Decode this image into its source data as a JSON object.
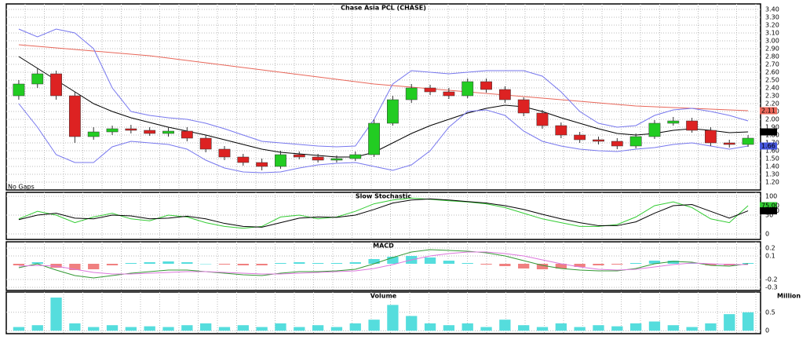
{
  "chart_data": [
    {
      "type": "candlestick",
      "title": "Chase Asia PCL (CHASE)",
      "annotation": "No Gaps",
      "ylim": [
        1.1,
        3.47
      ],
      "yticks": [
        {
          "value": 1.2,
          "label": "1.20"
        },
        {
          "value": 1.3,
          "label": "1.30"
        },
        {
          "value": 1.4,
          "label": "1.40"
        },
        {
          "value": 1.5,
          "label": "1.50"
        },
        {
          "value": 1.6,
          "label": "1.60"
        },
        {
          "value": 1.7,
          "label": "1.70"
        },
        {
          "value": 1.8,
          "label": "1.80"
        },
        {
          "value": 1.9,
          "label": "1.90"
        },
        {
          "value": 2.0,
          "label": "2.00"
        },
        {
          "value": 2.1,
          "label": "2.10"
        },
        {
          "value": 2.2,
          "label": "2.20"
        },
        {
          "value": 2.3,
          "label": "2.30"
        },
        {
          "value": 2.4,
          "label": "2.40"
        },
        {
          "value": 2.5,
          "label": "2.50"
        },
        {
          "value": 2.6,
          "label": "2.60"
        },
        {
          "value": 2.7,
          "label": "2.70"
        },
        {
          "value": 2.8,
          "label": "2.80"
        },
        {
          "value": 2.9,
          "label": "2.90"
        },
        {
          "value": 3.0,
          "label": "3.00"
        },
        {
          "value": 3.1,
          "label": "3.10"
        },
        {
          "value": 3.2,
          "label": "3.20"
        },
        {
          "value": 3.3,
          "label": "3.30"
        },
        {
          "value": 3.4,
          "label": "3.40"
        }
      ],
      "up_color": "#22cc22",
      "down_color": "#dd2222",
      "grid": true,
      "open": [
        2.3,
        2.45,
        2.58,
        2.3,
        1.78,
        1.84,
        1.88,
        1.86,
        1.82,
        1.85,
        1.76,
        1.62,
        1.52,
        1.45,
        1.4,
        1.55,
        1.52,
        1.48,
        1.5,
        1.55,
        1.95,
        2.25,
        2.4,
        2.35,
        2.3,
        2.48,
        2.38,
        2.25,
        2.08,
        1.92,
        1.8,
        1.74,
        1.72,
        1.66,
        1.78,
        1.95,
        1.98,
        1.86,
        1.7,
        1.68
      ],
      "high": [
        2.5,
        2.65,
        2.62,
        2.35,
        1.9,
        1.92,
        1.93,
        1.9,
        1.9,
        1.9,
        1.8,
        1.66,
        1.56,
        1.5,
        1.6,
        1.59,
        1.56,
        1.54,
        1.59,
        2.0,
        2.3,
        2.45,
        2.44,
        2.4,
        2.52,
        2.52,
        2.42,
        2.28,
        2.12,
        1.96,
        1.84,
        1.78,
        1.76,
        1.82,
        1.99,
        2.03,
        2.02,
        1.9,
        1.74,
        1.8
      ],
      "low": [
        2.25,
        2.4,
        2.25,
        1.7,
        1.74,
        1.8,
        1.82,
        1.79,
        1.78,
        1.72,
        1.58,
        1.48,
        1.41,
        1.35,
        1.37,
        1.49,
        1.45,
        1.45,
        1.47,
        1.52,
        1.92,
        2.21,
        2.31,
        2.26,
        2.27,
        2.34,
        2.21,
        2.04,
        1.88,
        1.76,
        1.7,
        1.68,
        1.62,
        1.63,
        1.75,
        1.92,
        1.83,
        1.66,
        1.64,
        1.65
      ],
      "close": [
        2.45,
        2.58,
        2.3,
        1.78,
        1.84,
        1.88,
        1.86,
        1.82,
        1.85,
        1.76,
        1.62,
        1.52,
        1.45,
        1.4,
        1.55,
        1.52,
        1.48,
        1.5,
        1.55,
        1.95,
        2.25,
        2.4,
        2.35,
        2.3,
        2.48,
        2.38,
        2.25,
        2.08,
        1.92,
        1.8,
        1.74,
        1.72,
        1.66,
        1.78,
        1.95,
        1.98,
        1.86,
        1.7,
        1.68,
        1.76
      ],
      "series": [
        {
          "color": "#e8675a",
          "values": [
            2.95,
            2.93,
            2.91,
            2.89,
            2.87,
            2.85,
            2.83,
            2.81,
            2.78,
            2.75,
            2.72,
            2.69,
            2.66,
            2.63,
            2.6,
            2.57,
            2.54,
            2.51,
            2.48,
            2.45,
            2.43,
            2.41,
            2.39,
            2.37,
            2.35,
            2.33,
            2.31,
            2.29,
            2.27,
            2.25,
            2.23,
            2.21,
            2.19,
            2.17,
            2.16,
            2.15,
            2.14,
            2.13,
            2.12,
            2.11
          ]
        },
        {
          "color": "#000000",
          "values": [
            2.8,
            2.65,
            2.5,
            2.35,
            2.2,
            2.1,
            2.02,
            1.96,
            1.9,
            1.85,
            1.8,
            1.74,
            1.68,
            1.62,
            1.58,
            1.56,
            1.54,
            1.52,
            1.52,
            1.58,
            1.7,
            1.82,
            1.92,
            2.0,
            2.08,
            2.14,
            2.18,
            2.16,
            2.1,
            2.02,
            1.95,
            1.88,
            1.82,
            1.8,
            1.82,
            1.86,
            1.88,
            1.86,
            1.83,
            1.84
          ]
        },
        {
          "color": "#7777ee",
          "values": [
            3.15,
            3.05,
            3.15,
            3.1,
            2.9,
            2.4,
            2.1,
            2.05,
            2.02,
            2.0,
            1.95,
            1.88,
            1.8,
            1.72,
            1.7,
            1.68,
            1.66,
            1.65,
            1.66,
            2.0,
            2.45,
            2.62,
            2.6,
            2.58,
            2.6,
            2.62,
            2.62,
            2.62,
            2.55,
            2.35,
            2.1,
            1.95,
            1.9,
            1.92,
            2.05,
            2.12,
            2.14,
            2.1,
            2.05,
            1.98
          ]
        },
        {
          "color": "#7777ee",
          "values": [
            2.2,
            1.9,
            1.55,
            1.45,
            1.45,
            1.65,
            1.72,
            1.7,
            1.68,
            1.62,
            1.48,
            1.38,
            1.33,
            1.32,
            1.33,
            1.38,
            1.42,
            1.44,
            1.45,
            1.4,
            1.35,
            1.42,
            1.6,
            1.9,
            2.1,
            2.12,
            2.05,
            1.85,
            1.72,
            1.66,
            1.62,
            1.6,
            1.59,
            1.62,
            1.64,
            1.68,
            1.7,
            1.66,
            1.62,
            1.66
          ]
        }
      ],
      "last_labels": [
        {
          "value": 2.11,
          "label": "2.11",
          "color": "#e8675a"
        },
        {
          "value": 1.84,
          "label": "1.84",
          "color": "#000000"
        },
        {
          "value": 1.66,
          "label": "1.66",
          "color": "#4455dd"
        }
      ]
    },
    {
      "type": "line",
      "title": "Slow Stochastic",
      "ylim": [
        -14.6,
        110.4
      ],
      "yticks": [
        0,
        50,
        100
      ],
      "grid": true,
      "series": [
        {
          "color": "#33cc33",
          "values": [
            40,
            60,
            50,
            30,
            45,
            55,
            40,
            35,
            50,
            45,
            30,
            20,
            15,
            20,
            45,
            50,
            40,
            45,
            60,
            80,
            90,
            95,
            92,
            88,
            85,
            80,
            70,
            55,
            40,
            30,
            20,
            20,
            25,
            45,
            75,
            85,
            70,
            40,
            30,
            75
          ]
        },
        {
          "color": "#000000",
          "values": [
            38,
            50,
            55,
            42,
            40,
            50,
            48,
            40,
            42,
            47,
            40,
            28,
            20,
            18,
            30,
            42,
            45,
            44,
            50,
            65,
            82,
            90,
            93,
            90,
            86,
            82,
            75,
            65,
            52,
            40,
            30,
            22,
            22,
            32,
            55,
            75,
            78,
            60,
            42,
            61.3
          ]
        }
      ],
      "last_labels": [
        {
          "value": 75,
          "label": "75.00",
          "color": "#33cc33"
        },
        {
          "value": 61.3,
          "label": "61.30",
          "color": "#000000"
        }
      ]
    },
    {
      "type": "combo",
      "title": "MACD",
      "ylim": [
        -0.34,
        0.28
      ],
      "yticks": [
        -0.3,
        -0.2,
        0.1,
        0.2
      ],
      "grid": true,
      "positive_color": "#55dddd",
      "negative_color": "#f08080",
      "series": [
        {
          "kind": "bar",
          "values": [
            -0.02,
            0.02,
            -0.05,
            -0.08,
            -0.07,
            -0.02,
            0.01,
            0.02,
            0.03,
            0.02,
            0.0,
            -0.01,
            -0.02,
            -0.02,
            0.01,
            0.02,
            0.01,
            0.01,
            0.02,
            0.06,
            0.09,
            0.1,
            0.08,
            0.04,
            0.01,
            -0.01,
            -0.03,
            -0.06,
            -0.07,
            -0.06,
            -0.04,
            -0.02,
            -0.01,
            0.01,
            0.04,
            0.04,
            0.01,
            -0.02,
            -0.02,
            0.01
          ]
        },
        {
          "kind": "line",
          "color": "#339933",
          "values": [
            -0.05,
            0.0,
            -0.08,
            -0.15,
            -0.18,
            -0.15,
            -0.12,
            -0.1,
            -0.08,
            -0.08,
            -0.1,
            -0.12,
            -0.14,
            -0.15,
            -0.12,
            -0.1,
            -0.1,
            -0.09,
            -0.07,
            0.0,
            0.08,
            0.15,
            0.18,
            0.17,
            0.16,
            0.14,
            0.1,
            0.04,
            -0.02,
            -0.06,
            -0.08,
            -0.09,
            -0.09,
            -0.06,
            0.0,
            0.03,
            0.02,
            -0.02,
            -0.03,
            0.0
          ]
        },
        {
          "kind": "line",
          "color": "#dd77dd",
          "values": [
            -0.03,
            -0.02,
            -0.03,
            -0.07,
            -0.11,
            -0.13,
            -0.13,
            -0.12,
            -0.11,
            -0.1,
            -0.1,
            -0.11,
            -0.12,
            -0.13,
            -0.13,
            -0.12,
            -0.11,
            -0.1,
            -0.09,
            -0.06,
            -0.01,
            0.05,
            0.1,
            0.13,
            0.15,
            0.15,
            0.13,
            0.1,
            0.05,
            0.0,
            -0.04,
            -0.07,
            -0.08,
            -0.07,
            -0.04,
            -0.01,
            0.01,
            0.0,
            -0.01,
            -0.01
          ]
        }
      ]
    },
    {
      "type": "bar",
      "title": "Volume",
      "y_label": "Million",
      "ylim": [
        -0.08,
        1.05
      ],
      "yticks": [
        0,
        0.5
      ],
      "grid": true,
      "positive_color": "#55dddd",
      "negative_color": "#f0a030",
      "values": [
        0.1,
        0.15,
        0.9,
        0.2,
        0.1,
        0.15,
        0.1,
        0.12,
        0.1,
        0.15,
        0.2,
        0.1,
        0.15,
        0.1,
        0.2,
        0.1,
        0.15,
        0.1,
        0.2,
        0.3,
        0.7,
        0.4,
        0.2,
        0.15,
        0.2,
        0.1,
        0.3,
        0.15,
        0.1,
        0.2,
        0.1,
        0.15,
        0.12,
        0.2,
        0.25,
        0.15,
        0.1,
        0.2,
        0.45,
        0.5
      ]
    }
  ]
}
